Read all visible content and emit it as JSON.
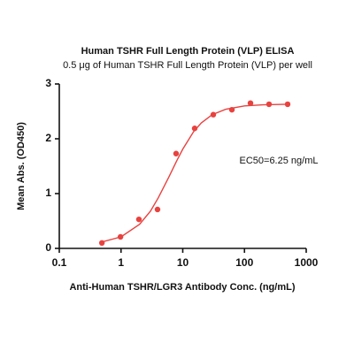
{
  "chart_data": {
    "type": "scatter",
    "title": "Human TSHR Full Length Protein (VLP) ELISA",
    "subtitle": "0.5 μg of Human TSHR Full Length Protein (VLP) per well",
    "x_label": "Anti-Human TSHR/LGR3 Antibody Conc. (ng/mL)",
    "y_label": "Mean Abs. (OD450)",
    "annotation": "EC50=6.25 ng/mL",
    "x_scale": "log",
    "xlim": [
      0.1,
      1000
    ],
    "xticks": [
      0.1,
      1,
      10,
      100,
      1000
    ],
    "ylim": [
      0,
      3
    ],
    "yticks": [
      0,
      1,
      2,
      3
    ],
    "series": [
      {
        "color": "#e8423f",
        "x": [
          0.49,
          0.98,
          1.95,
          3.9,
          7.8,
          15.6,
          31.25,
          62.5,
          125,
          250,
          500
        ],
        "values": [
          0.1,
          0.21,
          0.53,
          0.71,
          1.73,
          2.19,
          2.44,
          2.53,
          2.65,
          2.63,
          2.63
        ]
      },
      {
        "type": "line",
        "color": "#e8423f",
        "x": [
          0.5,
          1,
          2,
          3,
          4,
          6,
          8,
          10,
          15,
          20,
          30,
          50,
          100,
          200,
          500
        ],
        "values": [
          0.12,
          0.21,
          0.44,
          0.68,
          0.92,
          1.31,
          1.6,
          1.81,
          2.13,
          2.29,
          2.44,
          2.54,
          2.6,
          2.62,
          2.63
        ]
      }
    ]
  }
}
